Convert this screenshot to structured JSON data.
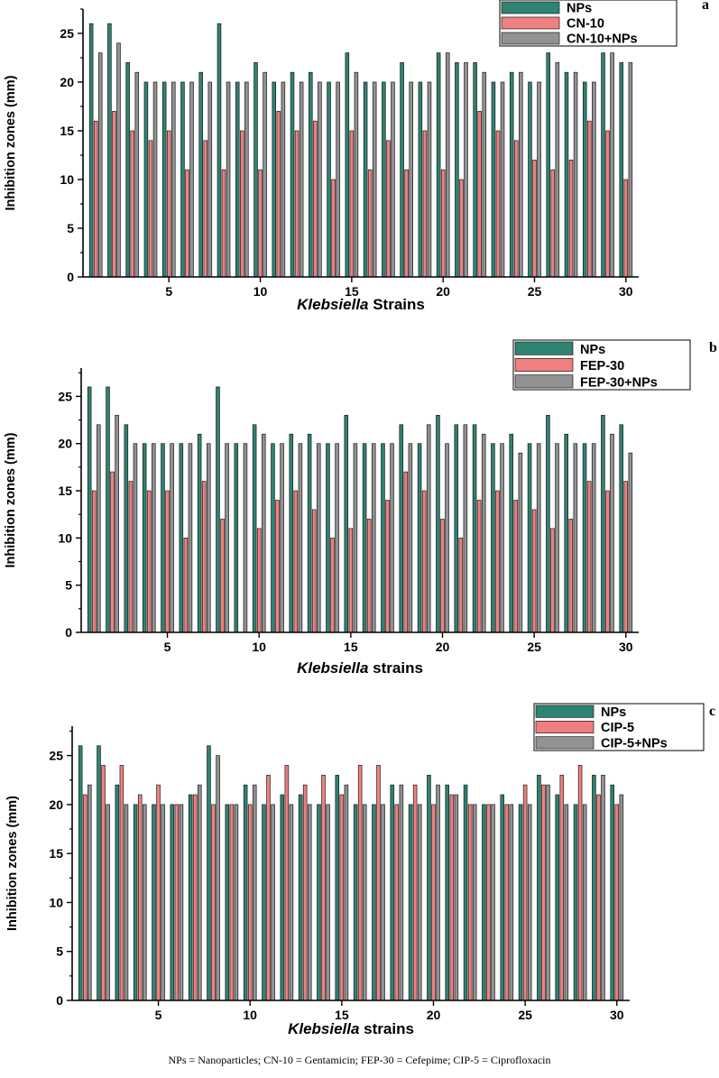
{
  "colors": {
    "nps": "#2f8373",
    "antibiotic": "#f08080",
    "combo": "#929292"
  },
  "footnote": "NPs = Nanoparticles; CN-10 = Gentamicin; FEP-30 = Cefepime; CIP-5 = Ciprofloxacin",
  "chart_data": [
    {
      "type": "bar",
      "panel_label": "a",
      "ylabel": "Inhibition zones (mm)",
      "xlabel_italic": "Klebsiella",
      "xlabel_rest": " Strains",
      "ylim": [
        0,
        27.5
      ],
      "xlim": [
        0.3,
        30.7
      ],
      "yticks": [
        "0",
        "5",
        "10",
        "15",
        "20",
        "25"
      ],
      "xticks": [
        "5",
        "10",
        "15",
        "20",
        "25",
        "30"
      ],
      "categories": [
        1,
        2,
        3,
        4,
        5,
        6,
        7,
        8,
        9,
        10,
        11,
        12,
        13,
        14,
        15,
        16,
        17,
        18,
        19,
        20,
        21,
        22,
        23,
        24,
        25,
        26,
        27,
        28,
        29,
        30
      ],
      "series": [
        {
          "name": "NPs",
          "values": [
            26,
            26,
            22,
            20,
            20,
            20,
            21,
            26,
            20,
            22,
            20,
            21,
            21,
            20,
            23,
            20,
            20,
            22,
            20,
            23,
            22,
            22,
            20,
            21,
            20,
            23,
            21,
            20,
            23,
            22
          ]
        },
        {
          "name": "CN-10",
          "values": [
            16,
            17,
            15,
            14,
            15,
            11,
            14,
            11,
            15,
            11,
            17,
            15,
            16,
            10,
            15,
            11,
            14,
            11,
            15,
            11,
            10,
            17,
            15,
            14,
            12,
            11,
            12,
            16,
            15,
            10
          ]
        },
        {
          "name": "CN-10+NPs",
          "values": [
            23,
            24,
            21,
            20,
            20,
            20,
            20,
            20,
            20,
            21,
            20,
            20,
            20,
            20,
            21,
            20,
            20,
            20,
            20,
            23,
            22,
            21,
            20,
            21,
            20,
            22,
            21,
            20,
            23,
            22
          ]
        }
      ]
    },
    {
      "type": "bar",
      "panel_label": "b",
      "ylabel": "Inhibition zones (mm)",
      "xlabel_italic": "Klebsiella",
      "xlabel_rest": " strains",
      "ylim": [
        0,
        28
      ],
      "xlim": [
        0.3,
        30.7
      ],
      "yticks": [
        "0",
        "5",
        "10",
        "15",
        "20",
        "25"
      ],
      "xticks": [
        "5",
        "10",
        "15",
        "20",
        "25",
        "30"
      ],
      "categories": [
        1,
        2,
        3,
        4,
        5,
        6,
        7,
        8,
        9,
        10,
        11,
        12,
        13,
        14,
        15,
        16,
        17,
        18,
        19,
        20,
        21,
        22,
        23,
        24,
        25,
        26,
        27,
        28,
        29,
        30
      ],
      "series": [
        {
          "name": "NPs",
          "values": [
            26,
            26,
            22,
            20,
            20,
            20,
            21,
            26,
            20,
            22,
            20,
            21,
            21,
            20,
            23,
            20,
            20,
            22,
            20,
            23,
            22,
            22,
            20,
            21,
            20,
            23,
            21,
            20,
            23,
            22
          ]
        },
        {
          "name": "FEP-30",
          "values": [
            15,
            17,
            16,
            15,
            15,
            10,
            16,
            12,
            0,
            11,
            14,
            15,
            13,
            10,
            11,
            12,
            14,
            17,
            15,
            12,
            10,
            14,
            15,
            14,
            13,
            11,
            12,
            16,
            15,
            16
          ]
        },
        {
          "name": "FEP-30+NPs",
          "values": [
            22,
            23,
            20,
            20,
            20,
            20,
            20,
            20,
            20,
            21,
            20,
            20,
            20,
            20,
            20,
            20,
            20,
            20,
            22,
            20,
            22,
            21,
            20,
            19,
            20,
            20,
            20,
            20,
            21,
            19
          ]
        }
      ]
    },
    {
      "type": "bar",
      "panel_label": "c",
      "ylabel": "Inhibition zones (mm)",
      "xlabel_italic": "Klebsiella",
      "xlabel_rest": " strains",
      "ylim": [
        0,
        28
      ],
      "xlim": [
        0.3,
        30.7
      ],
      "yticks": [
        "0",
        "5",
        "10",
        "15",
        "20",
        "25"
      ],
      "xticks": [
        "5",
        "10",
        "15",
        "20",
        "25",
        "30"
      ],
      "categories": [
        1,
        2,
        3,
        4,
        5,
        6,
        7,
        8,
        9,
        10,
        11,
        12,
        13,
        14,
        15,
        16,
        17,
        18,
        19,
        20,
        21,
        22,
        23,
        24,
        25,
        26,
        27,
        28,
        29,
        30
      ],
      "series": [
        {
          "name": "NPs",
          "values": [
            26,
            26,
            22,
            20,
            20,
            20,
            21,
            26,
            20,
            22,
            20,
            21,
            21,
            20,
            23,
            20,
            20,
            22,
            20,
            23,
            22,
            22,
            20,
            21,
            20,
            23,
            21,
            20,
            23,
            22
          ]
        },
        {
          "name": "CIP-5",
          "values": [
            21,
            24,
            24,
            21,
            22,
            20,
            21,
            20,
            20,
            20,
            23,
            24,
            22,
            23,
            21,
            24,
            24,
            20,
            22,
            20,
            21,
            20,
            20,
            20,
            22,
            22,
            23,
            24,
            21,
            20
          ]
        },
        {
          "name": "CIP-5+NPs",
          "values": [
            22,
            20,
            20,
            20,
            20,
            20,
            22,
            25,
            20,
            22,
            20,
            20,
            20,
            20,
            22,
            20,
            20,
            22,
            20,
            22,
            21,
            20,
            20,
            20,
            20,
            22,
            20,
            20,
            23,
            21
          ]
        }
      ]
    }
  ]
}
